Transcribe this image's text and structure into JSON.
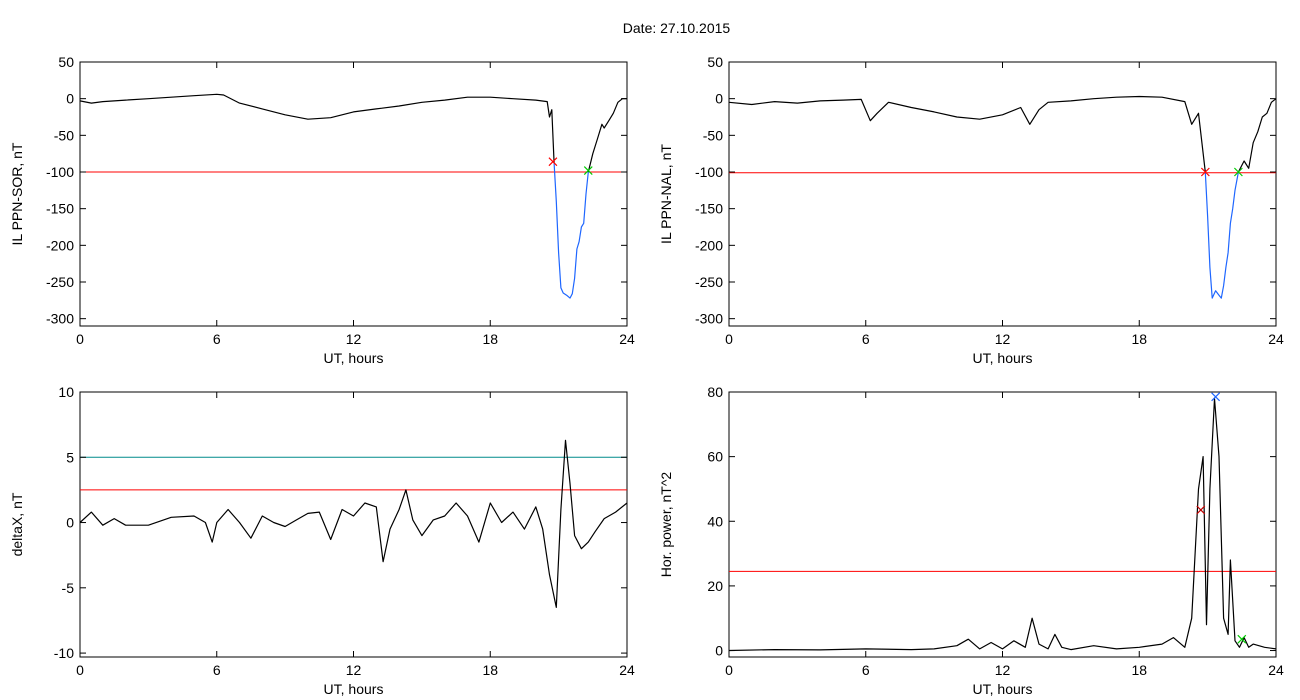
{
  "figure": {
    "title": "Date:  27.10.2015"
  },
  "chart_data": [
    {
      "type": "line",
      "xlabel": "UT, hours",
      "ylabel": "IL PPN-SOR, nT",
      "xlim": [
        0,
        24
      ],
      "ylim": [
        -310,
        50
      ],
      "xticks": [
        0,
        6,
        12,
        18,
        24
      ],
      "yticks": [
        50,
        0,
        -50,
        -100,
        -150,
        -200,
        -250,
        -300
      ],
      "threshold_lines": [
        {
          "y": -100,
          "color": "#ff0000"
        }
      ],
      "series": [
        {
          "color": "#000000",
          "x": [
            0,
            0.5,
            1,
            2,
            3,
            4,
            5,
            6,
            6.3,
            7,
            8,
            9,
            10,
            11,
            12,
            13,
            14,
            15,
            16,
            17,
            18,
            19,
            20,
            20.5,
            20.6,
            20.7,
            20.8
          ],
          "y": [
            -3,
            -6,
            -4,
            -2,
            0,
            2,
            4,
            6,
            5,
            -6,
            -14,
            -22,
            -28,
            -26,
            -18,
            -14,
            -10,
            -5,
            -2,
            2,
            2,
            0,
            -2,
            -4,
            -25,
            -15,
            -88
          ]
        },
        {
          "color": "#1e66ff",
          "x": [
            20.8,
            20.9,
            21.0,
            21.1,
            21.2,
            21.35,
            21.5,
            21.6,
            21.7,
            21.8,
            21.9,
            22.0,
            22.1,
            22.2,
            22.3
          ],
          "y": [
            -88,
            -140,
            -210,
            -258,
            -265,
            -268,
            -272,
            -266,
            -245,
            -205,
            -195,
            -175,
            -170,
            -130,
            -100
          ]
        },
        {
          "color": "#000000",
          "x": [
            22.3,
            22.5,
            22.7,
            22.9,
            23.0,
            23.2,
            23.4,
            23.6,
            23.8,
            24
          ],
          "y": [
            -100,
            -75,
            -55,
            -35,
            -40,
            -30,
            -20,
            -5,
            0,
            0
          ]
        }
      ],
      "markers": [
        {
          "x": 20.75,
          "y": -86,
          "color": "#ff0000"
        },
        {
          "x": 22.3,
          "y": -98,
          "color": "#00cc00"
        }
      ]
    },
    {
      "type": "line",
      "xlabel": "UT, hours",
      "ylabel": "IL PPN-NAL, nT",
      "xlim": [
        0,
        24
      ],
      "ylim": [
        -310,
        50
      ],
      "xticks": [
        0,
        6,
        12,
        18,
        24
      ],
      "yticks": [
        50,
        0,
        -50,
        -100,
        -150,
        -200,
        -250,
        -300
      ],
      "threshold_lines": [
        {
          "y": -101,
          "color": "#ff0000"
        }
      ],
      "series": [
        {
          "color": "#000000",
          "x": [
            0,
            1,
            2,
            3,
            4,
            5,
            5.8,
            6.2,
            6.5,
            7,
            8,
            9,
            10,
            11,
            12,
            12.8,
            13.2,
            13.6,
            14,
            15,
            16,
            17,
            18,
            19,
            20,
            20.3,
            20.6,
            20.9
          ],
          "y": [
            -5,
            -8,
            -4,
            -6,
            -3,
            -2,
            -1,
            -30,
            -20,
            -5,
            -12,
            -18,
            -25,
            -28,
            -22,
            -12,
            -35,
            -15,
            -5,
            -3,
            0,
            2,
            3,
            2,
            -4,
            -35,
            -20,
            -100
          ]
        },
        {
          "color": "#1e66ff",
          "x": [
            20.9,
            21.0,
            21.1,
            21.2,
            21.35,
            21.5,
            21.6,
            21.7,
            21.8,
            21.9,
            22.0,
            22.1,
            22.2,
            22.35
          ],
          "y": [
            -100,
            -160,
            -230,
            -272,
            -262,
            -268,
            -272,
            -255,
            -230,
            -210,
            -170,
            -150,
            -125,
            -100
          ]
        },
        {
          "color": "#000000",
          "x": [
            22.35,
            22.6,
            22.8,
            23.0,
            23.2,
            23.4,
            23.6,
            23.8,
            24
          ],
          "y": [
            -100,
            -85,
            -95,
            -60,
            -45,
            -25,
            -20,
            -5,
            0
          ]
        }
      ],
      "markers": [
        {
          "x": 20.9,
          "y": -100,
          "color": "#ff0000"
        },
        {
          "x": 22.35,
          "y": -100,
          "color": "#00cc00"
        }
      ]
    },
    {
      "type": "line",
      "xlabel": "UT, hours",
      "ylabel": "deltaX, nT",
      "xlim": [
        0,
        24
      ],
      "ylim": [
        -10.3,
        10
      ],
      "xticks": [
        0,
        6,
        12,
        18,
        24
      ],
      "yticks": [
        10,
        5,
        0,
        -5,
        -10
      ],
      "threshold_lines": [
        {
          "y": 5,
          "color": "#008b8b"
        },
        {
          "y": 2.5,
          "color": "#ff0000"
        }
      ],
      "series": [
        {
          "color": "#000000",
          "x": [
            0,
            0.5,
            1,
            1.5,
            2,
            3,
            4,
            5,
            5.5,
            5.8,
            6,
            6.5,
            7,
            7.5,
            8,
            8.5,
            9,
            9.5,
            10,
            10.5,
            11,
            11.5,
            12,
            12.5,
            13,
            13.3,
            13.6,
            14,
            14.3,
            14.6,
            15,
            15.5,
            16,
            16.5,
            17,
            17.5,
            18,
            18.5,
            19,
            19.5,
            20,
            20.3,
            20.6,
            20.9,
            21.1,
            21.3,
            21.5,
            21.7,
            22,
            22.3,
            22.6,
            23,
            23.5,
            24
          ],
          "y": [
            0,
            0.8,
            -0.2,
            0.3,
            -0.2,
            -0.2,
            0.4,
            0.5,
            0,
            -1.5,
            0,
            1.0,
            0,
            -1.2,
            0.5,
            0,
            -0.3,
            0.2,
            0.7,
            0.8,
            -1.3,
            1.0,
            0.5,
            1.5,
            1.2,
            -3.0,
            -0.5,
            1.0,
            2.5,
            0.2,
            -1.0,
            0.2,
            0.5,
            1.5,
            0.5,
            -1.5,
            1.5,
            0,
            0.8,
            -0.5,
            1.2,
            -0.5,
            -4.0,
            -6.5,
            1.0,
            6.3,
            3.0,
            -1.0,
            -2.0,
            -1.5,
            -0.7,
            0.3,
            0.8,
            1.5
          ]
        }
      ],
      "markers": []
    },
    {
      "type": "line",
      "xlabel": "UT, hours",
      "ylabel": "Hor. power, nT^2",
      "xlim": [
        0,
        24
      ],
      "ylim": [
        -2,
        80
      ],
      "xticks": [
        0,
        6,
        12,
        18,
        24
      ],
      "yticks": [
        80,
        60,
        40,
        20,
        0
      ],
      "threshold_lines": [
        {
          "y": 24.5,
          "color": "#ff0000"
        }
      ],
      "series": [
        {
          "color": "#000000",
          "x": [
            0,
            2,
            4,
            6,
            8,
            9,
            10,
            10.5,
            11,
            11.5,
            12,
            12.5,
            13,
            13.3,
            13.6,
            14,
            14.3,
            14.6,
            15,
            16,
            17,
            18,
            19,
            19.5,
            20,
            20.3,
            20.6,
            20.8,
            20.95,
            21.1,
            21.3,
            21.5,
            21.7,
            21.9,
            22.0,
            22.2,
            22.4,
            22.6,
            22.8,
            23.0,
            23.5,
            24
          ],
          "y": [
            0,
            0.3,
            0.2,
            0.5,
            0.3,
            0.5,
            1.5,
            3.5,
            0.5,
            2.5,
            0.5,
            3,
            1,
            10,
            2,
            0.5,
            5,
            1,
            0.3,
            1.5,
            0.5,
            1,
            2,
            4,
            1,
            10,
            50,
            60,
            8,
            50,
            78,
            60,
            10,
            5,
            28,
            3,
            1,
            4,
            1,
            2,
            1,
            0.5
          ]
        }
      ],
      "markers": [
        {
          "x": 20.7,
          "y": 43.5,
          "color": "#c00000"
        },
        {
          "x": 21.35,
          "y": 78.5,
          "color": "#1e66ff"
        },
        {
          "x": 22.5,
          "y": 3.5,
          "color": "#00cc00"
        }
      ]
    }
  ]
}
